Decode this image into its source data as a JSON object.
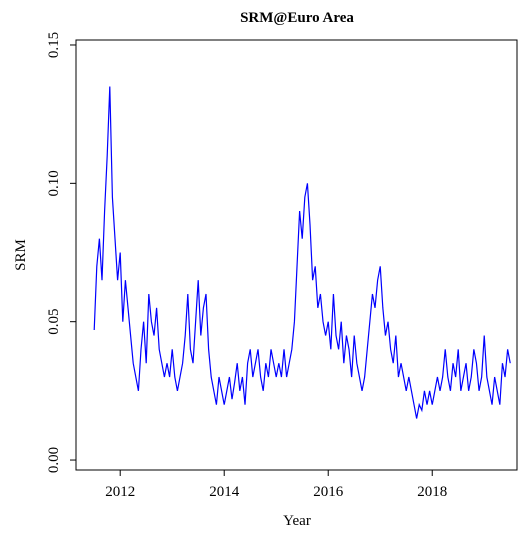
{
  "chart_data": {
    "type": "line",
    "title": "SRM@Euro Area",
    "xlabel": "Year",
    "ylabel": "SRM",
    "color": "#0000ff",
    "x": [
      2011.5,
      2011.55,
      2011.6,
      2011.65,
      2011.7,
      2011.75,
      2011.8,
      2011.85,
      2011.9,
      2011.95,
      2012,
      2012.05,
      2012.1,
      2012.15,
      2012.2,
      2012.25,
      2012.3,
      2012.35,
      2012.4,
      2012.45,
      2012.5,
      2012.55,
      2012.6,
      2012.65,
      2012.7,
      2012.75,
      2012.8,
      2012.85,
      2012.9,
      2012.95,
      2013,
      2013.05,
      2013.1,
      2013.15,
      2013.2,
      2013.25,
      2013.3,
      2013.35,
      2013.4,
      2013.45,
      2013.5,
      2013.55,
      2013.6,
      2013.65,
      2013.7,
      2013.75,
      2013.8,
      2013.85,
      2013.9,
      2013.95,
      2014,
      2014.05,
      2014.1,
      2014.15,
      2014.2,
      2014.25,
      2014.3,
      2014.35,
      2014.4,
      2014.45,
      2014.5,
      2014.55,
      2014.6,
      2014.65,
      2014.7,
      2014.75,
      2014.8,
      2014.85,
      2014.9,
      2014.95,
      2015,
      2015.05,
      2015.1,
      2015.15,
      2015.2,
      2015.25,
      2015.3,
      2015.35,
      2015.4,
      2015.45,
      2015.5,
      2015.55,
      2015.6,
      2015.65,
      2015.7,
      2015.75,
      2015.8,
      2015.85,
      2015.9,
      2015.95,
      2016,
      2016.05,
      2016.1,
      2016.15,
      2016.2,
      2016.25,
      2016.3,
      2016.35,
      2016.4,
      2016.45,
      2016.5,
      2016.55,
      2016.6,
      2016.65,
      2016.7,
      2016.75,
      2016.8,
      2016.85,
      2016.9,
      2016.95,
      2017,
      2017.05,
      2017.1,
      2017.15,
      2017.2,
      2017.25,
      2017.3,
      2017.35,
      2017.4,
      2017.45,
      2017.5,
      2017.55,
      2017.6,
      2017.65,
      2017.7,
      2017.75,
      2017.8,
      2017.85,
      2017.9,
      2017.95,
      2018,
      2018.05,
      2018.1,
      2018.15,
      2018.2,
      2018.25,
      2018.3,
      2018.35,
      2018.4,
      2018.45,
      2018.5,
      2018.55,
      2018.6,
      2018.65,
      2018.7,
      2018.75,
      2018.8,
      2018.85,
      2018.9,
      2018.95,
      2019,
      2019.05,
      2019.1,
      2019.15,
      2019.2,
      2019.25,
      2019.3,
      2019.35,
      2019.4,
      2019.45,
      2019.5
    ],
    "values": [
      0.047,
      0.07,
      0.08,
      0.065,
      0.09,
      0.11,
      0.135,
      0.095,
      0.08,
      0.065,
      0.075,
      0.05,
      0.065,
      0.055,
      0.045,
      0.035,
      0.03,
      0.025,
      0.04,
      0.05,
      0.035,
      0.06,
      0.05,
      0.045,
      0.055,
      0.04,
      0.035,
      0.03,
      0.035,
      0.03,
      0.04,
      0.03,
      0.025,
      0.03,
      0.035,
      0.045,
      0.06,
      0.04,
      0.035,
      0.05,
      0.065,
      0.045,
      0.055,
      0.06,
      0.04,
      0.03,
      0.025,
      0.02,
      0.03,
      0.025,
      0.02,
      0.025,
      0.03,
      0.022,
      0.028,
      0.035,
      0.025,
      0.03,
      0.02,
      0.035,
      0.04,
      0.03,
      0.035,
      0.04,
      0.03,
      0.025,
      0.035,
      0.03,
      0.04,
      0.035,
      0.03,
      0.035,
      0.03,
      0.04,
      0.03,
      0.035,
      0.04,
      0.05,
      0.07,
      0.09,
      0.08,
      0.095,
      0.1,
      0.085,
      0.065,
      0.07,
      0.055,
      0.06,
      0.05,
      0.045,
      0.05,
      0.04,
      0.06,
      0.045,
      0.04,
      0.05,
      0.035,
      0.045,
      0.04,
      0.03,
      0.045,
      0.035,
      0.03,
      0.025,
      0.03,
      0.04,
      0.05,
      0.06,
      0.055,
      0.065,
      0.07,
      0.055,
      0.045,
      0.05,
      0.04,
      0.035,
      0.045,
      0.03,
      0.035,
      0.03,
      0.025,
      0.03,
      0.025,
      0.02,
      0.015,
      0.02,
      0.018,
      0.025,
      0.02,
      0.025,
      0.02,
      0.025,
      0.03,
      0.025,
      0.03,
      0.04,
      0.03,
      0.025,
      0.035,
      0.03,
      0.04,
      0.025,
      0.03,
      0.035,
      0.025,
      0.03,
      0.04,
      0.035,
      0.025,
      0.03,
      0.045,
      0.03,
      0.025,
      0.02,
      0.03,
      0.025,
      0.02,
      0.035,
      0.03,
      0.04,
      0.035
    ],
    "xlim": [
      2011.15,
      2019.63
    ],
    "xticks": [
      2012,
      2014,
      2016,
      2018
    ],
    "ylim": [
      -0.0036,
      0.1518
    ],
    "yticks": [
      {
        "value": 0,
        "label": "0.00"
      },
      {
        "value": 0.05,
        "label": "0.05"
      },
      {
        "value": 0.1,
        "label": "0.10"
      },
      {
        "value": 0.15,
        "label": "0.15"
      }
    ]
  }
}
